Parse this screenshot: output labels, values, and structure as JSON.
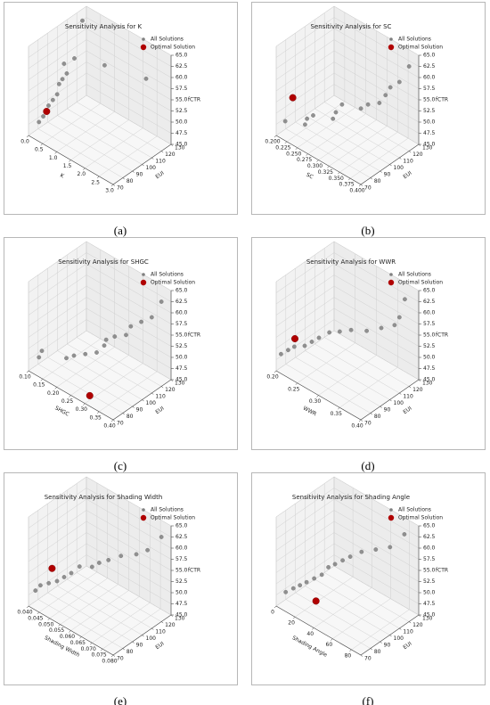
{
  "chart_data": [
    {
      "type": "scatter3d",
      "title": "Sensitivity Analysis for K",
      "caption": "(a)",
      "xlabel": "K",
      "ylabel": "EUI",
      "zlabel": "fCTR",
      "xlim": [
        0,
        3
      ],
      "xticks": [
        {
          "value": 0,
          "label": "0.0"
        },
        0.5,
        {
          "value": 1,
          "label": "1.0"
        },
        1.5,
        {
          "value": 2,
          "label": "2.0"
        },
        2.5,
        {
          "value": 3,
          "label": "3.0"
        }
      ],
      "ylim": [
        70,
        130
      ],
      "yticks": [
        70,
        80,
        90,
        100,
        110,
        120,
        130
      ],
      "zlim": [
        45,
        65
      ],
      "zticks": [
        {
          "value": 45,
          "label": "45.0"
        },
        47.5,
        {
          "value": 50,
          "label": "50.0"
        },
        52.5,
        {
          "value": 55,
          "label": "55.0"
        },
        57.5,
        {
          "value": 60,
          "label": "60.0"
        },
        62.5,
        {
          "value": 65,
          "label": "65.0"
        }
      ],
      "series": [
        {
          "name": "All Solutions",
          "color": "#808080",
          "x": [
            0.2,
            0.25,
            0.3,
            0.3,
            0.35,
            0.4,
            0.4,
            0.45,
            0.5,
            0.3,
            0.6,
            1.5,
            2.8,
            0.2
          ],
          "y": [
            75,
            78,
            80,
            82,
            85,
            88,
            90,
            92,
            95,
            98,
            100,
            105,
            110,
            120
          ],
          "z": [
            48,
            49,
            50,
            51,
            52,
            53,
            55,
            56,
            57,
            58,
            60,
            61,
            62,
            64
          ]
        },
        {
          "name": "Optimal Solution",
          "color": "#b00000",
          "x": [
            0.3
          ],
          "y": [
            80
          ],
          "z": [
            50
          ]
        }
      ]
    },
    {
      "type": "scatter3d",
      "title": "Sensitivity Analysis for SC",
      "caption": "(b)",
      "xlabel": "SC",
      "ylabel": "EUI",
      "zlabel": "fCTR",
      "xlim": [
        0.2,
        0.4
      ],
      "xticks": [
        {
          "value": 0.2,
          "label": "0.200"
        },
        0.225,
        {
          "value": 0.25,
          "label": "0.250"
        },
        0.275,
        {
          "value": 0.3,
          "label": "0.300"
        },
        0.325,
        {
          "value": 0.35,
          "label": "0.350"
        },
        0.375,
        {
          "value": 0.4,
          "label": "0.400"
        }
      ],
      "ylim": [
        70,
        130
      ],
      "yticks": [
        70,
        80,
        90,
        100,
        110,
        120,
        130
      ],
      "zlim": [
        45,
        65
      ],
      "zticks": [
        {
          "value": 45,
          "label": "45.0"
        },
        47.5,
        {
          "value": 50,
          "label": "50.0"
        },
        52.5,
        {
          "value": 55,
          "label": "55.0"
        },
        57.5,
        {
          "value": 60,
          "label": "60.0"
        },
        62.5,
        {
          "value": 65,
          "label": "65.0"
        }
      ],
      "series": [
        {
          "name": "All Solutions",
          "color": "#808080",
          "x": [
            0.21,
            0.25,
            0.25,
            0.26,
            0.3,
            0.3,
            0.31,
            0.35,
            0.36,
            0.38,
            0.39,
            0.39,
            0.4,
            0.4
          ],
          "y": [
            75,
            78,
            80,
            82,
            85,
            88,
            90,
            92,
            95,
            98,
            100,
            105,
            110,
            120
          ],
          "z": [
            48,
            49,
            50,
            51,
            52,
            53,
            55,
            56,
            57,
            58,
            60,
            61,
            62,
            64
          ]
        },
        {
          "name": "Optimal Solution",
          "color": "#b00000",
          "x": [
            0.205
          ],
          "y": [
            85
          ],
          "z": [
            51.5
          ]
        }
      ]
    },
    {
      "type": "scatter3d",
      "title": "Sensitivity Analysis for SHGC",
      "caption": "(c)",
      "xlabel": "SHGC",
      "ylabel": "EUI",
      "zlabel": "fCTR",
      "xlim": [
        0.1,
        0.4
      ],
      "xticks": [
        {
          "value": 0.1,
          "label": "0.10"
        },
        0.15,
        {
          "value": 0.2,
          "label": "0.20"
        },
        0.25,
        {
          "value": 0.3,
          "label": "0.30"
        },
        0.35,
        {
          "value": 0.4,
          "label": "0.40"
        }
      ],
      "ylim": [
        70,
        130
      ],
      "yticks": [
        70,
        80,
        90,
        100,
        110,
        120,
        130
      ],
      "zlim": [
        45,
        65
      ],
      "zticks": [
        {
          "value": 45,
          "label": "45.0"
        },
        47.5,
        {
          "value": 50,
          "label": "50.0"
        },
        52.5,
        {
          "value": 55,
          "label": "55.0"
        },
        57.5,
        {
          "value": 60,
          "label": "60.0"
        },
        62.5,
        {
          "value": 65,
          "label": "65.0"
        }
      ],
      "series": [
        {
          "name": "All Solutions",
          "color": "#808080",
          "x": [
            0.12,
            0.12,
            0.2,
            0.22,
            0.25,
            0.28,
            0.3,
            0.3,
            0.32,
            0.35,
            0.36,
            0.38,
            0.4,
            0.4
          ],
          "y": [
            75,
            78,
            80,
            82,
            85,
            88,
            90,
            92,
            95,
            98,
            100,
            105,
            110,
            120
          ],
          "z": [
            48,
            49,
            50,
            51,
            52,
            53,
            55,
            56,
            57,
            58,
            60,
            61,
            62,
            64
          ]
        },
        {
          "name": "Optimal Solution",
          "color": "#b00000",
          "x": [
            0.3
          ],
          "y": [
            75
          ],
          "z": [
            46
          ]
        }
      ]
    },
    {
      "type": "scatter3d",
      "title": "Sensitivity Analysis for WWR",
      "caption": "(d)",
      "xlabel": "WWR",
      "ylabel": "EUI",
      "zlabel": "fCTR",
      "xlim": [
        0.2,
        0.4
      ],
      "xticks": [
        {
          "value": 0.2,
          "label": "0.20"
        },
        0.25,
        {
          "value": 0.3,
          "label": "0.30"
        },
        0.35,
        {
          "value": 0.4,
          "label": "0.40"
        }
      ],
      "ylim": [
        70,
        130
      ],
      "yticks": [
        70,
        80,
        90,
        100,
        110,
        120,
        130
      ],
      "zlim": [
        45,
        65
      ],
      "zticks": [
        {
          "value": 45,
          "label": "45.0"
        },
        47.5,
        {
          "value": 50,
          "label": "50.0"
        },
        52.5,
        {
          "value": 55,
          "label": "55.0"
        },
        57.5,
        {
          "value": 60,
          "label": "60.0"
        },
        62.5,
        {
          "value": 65,
          "label": "65.0"
        }
      ],
      "series": [
        {
          "name": "All Solutions",
          "color": "#808080",
          "x": [
            0.2,
            0.21,
            0.22,
            0.24,
            0.25,
            0.26,
            0.28,
            0.3,
            0.32,
            0.35,
            0.38,
            0.4,
            0.4,
            0.39
          ],
          "y": [
            75,
            78,
            80,
            82,
            85,
            88,
            90,
            92,
            95,
            98,
            100,
            105,
            110,
            120
          ],
          "z": [
            48,
            49,
            50,
            51,
            52,
            53,
            55,
            56,
            57,
            58,
            60,
            61,
            62,
            64
          ]
        },
        {
          "name": "Optimal Solution",
          "color": "#b00000",
          "x": [
            0.21
          ],
          "y": [
            85
          ],
          "z": [
            50.5
          ]
        }
      ]
    },
    {
      "type": "scatter3d",
      "title": "Sensitivity Analysis for Shading Width",
      "caption": "(e)",
      "xlabel": "Shading Width",
      "ylabel": "EUI",
      "zlabel": "fCTR",
      "xlim": [
        0.04,
        0.08
      ],
      "xticks": [
        {
          "value": 0.04,
          "label": "0.040"
        },
        0.045,
        {
          "value": 0.05,
          "label": "0.050"
        },
        0.055,
        {
          "value": 0.06,
          "label": "0.060"
        },
        0.065,
        {
          "value": 0.07,
          "label": "0.070"
        },
        0.075,
        {
          "value": 0.08,
          "label": "0.080"
        }
      ],
      "ylim": [
        70,
        130
      ],
      "yticks": [
        70,
        80,
        90,
        100,
        110,
        120,
        130
      ],
      "zlim": [
        45,
        65
      ],
      "zticks": [
        {
          "value": 45,
          "label": "45.0"
        },
        47.5,
        {
          "value": 50,
          "label": "50.0"
        },
        52.5,
        {
          "value": 55,
          "label": "55.0"
        },
        57.5,
        {
          "value": 60,
          "label": "60.0"
        },
        62.5,
        {
          "value": 65,
          "label": "65.0"
        }
      ],
      "series": [
        {
          "name": "All Solutions",
          "color": "#808080",
          "x": [
            0.041,
            0.042,
            0.045,
            0.048,
            0.05,
            0.052,
            0.055,
            0.06,
            0.062,
            0.065,
            0.07,
            0.075,
            0.078,
            0.08
          ],
          "y": [
            75,
            78,
            80,
            82,
            85,
            88,
            90,
            92,
            95,
            98,
            100,
            105,
            110,
            120
          ],
          "z": [
            48,
            49,
            50,
            51,
            52,
            53,
            55,
            56,
            57,
            58,
            60,
            61,
            62,
            64
          ]
        },
        {
          "name": "Optimal Solution",
          "color": "#b00000",
          "x": [
            0.042
          ],
          "y": [
            90
          ],
          "z": [
            51
          ]
        }
      ]
    },
    {
      "type": "scatter3d",
      "title": "Sensitivity Analysis for Shading Angle",
      "caption": "(f)",
      "xlabel": "Shading Angle",
      "ylabel": "EUI",
      "zlabel": "fCTR",
      "xlim": [
        0,
        90
      ],
      "xticks": [
        0,
        20,
        40,
        60,
        80
      ],
      "ylim": [
        70,
        130
      ],
      "yticks": [
        70,
        80,
        90,
        100,
        110,
        120,
        130
      ],
      "zlim": [
        45,
        65
      ],
      "zticks": [
        {
          "value": 45,
          "label": "45.0"
        },
        47.5,
        {
          "value": 50,
          "label": "50.0"
        },
        52.5,
        {
          "value": 55,
          "label": "55.0"
        },
        57.5,
        {
          "value": 60,
          "label": "60.0"
        },
        62.5,
        {
          "value": 65,
          "label": "65.0"
        }
      ],
      "series": [
        {
          "name": "All Solutions",
          "color": "#808080",
          "x": [
            5,
            10,
            15,
            20,
            25,
            30,
            35,
            40,
            45,
            50,
            60,
            70,
            80,
            85
          ],
          "y": [
            75,
            78,
            80,
            82,
            85,
            88,
            90,
            92,
            95,
            98,
            100,
            105,
            110,
            120
          ],
          "z": [
            48,
            49,
            50,
            51,
            52,
            53,
            55,
            56,
            57,
            58,
            60,
            61,
            62,
            64
          ]
        },
        {
          "name": "Optimal Solution",
          "color": "#b00000",
          "x": [
            30
          ],
          "y": [
            82
          ],
          "z": [
            48
          ]
        }
      ]
    }
  ]
}
